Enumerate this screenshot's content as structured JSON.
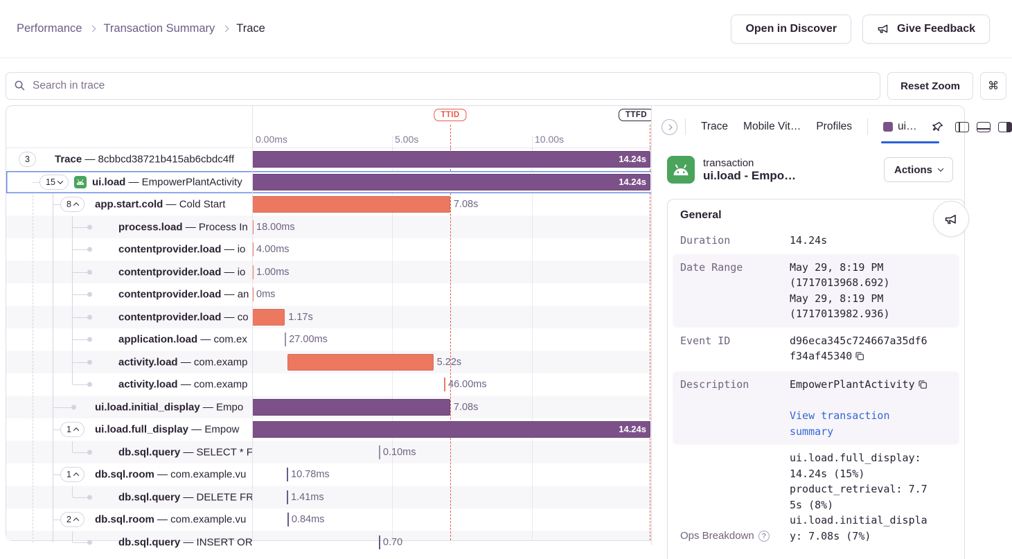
{
  "breadcrumb": {
    "items": [
      {
        "label": "Performance"
      },
      {
        "label": "Transaction Summary"
      },
      {
        "label": "Trace"
      }
    ]
  },
  "header_buttons": {
    "open_in_discover": "Open in Discover",
    "give_feedback": "Give Feedback"
  },
  "toolbar": {
    "search_placeholder": "Search in trace",
    "reset_zoom_label": "Reset Zoom",
    "shortcut_key": "⌘"
  },
  "timeline": {
    "duration_s": 14.24,
    "ticks": [
      {
        "label": "0.00ms",
        "t": 0
      },
      {
        "label": "5.00s",
        "t": 5
      },
      {
        "label": "10.00s",
        "t": 10
      }
    ],
    "markers": [
      {
        "label": "TTID",
        "t": 7.08
      },
      {
        "label": "TTFD",
        "t": 14.24
      }
    ]
  },
  "rows": [
    {
      "depth": 0,
      "marker": "pill",
      "count": "3",
      "chevron": null,
      "op": "Trace",
      "desc": "8cbbcd38721b415ab6cbdc4ff",
      "bar": {
        "kind": "bar",
        "color": "purple",
        "start": 0,
        "duration": 14.24,
        "label": "14.24s",
        "label_inside": true
      }
    },
    {
      "depth": 1,
      "marker": "pill",
      "count": "15",
      "chevron": "down",
      "icon": "android",
      "selected": true,
      "op": "ui.load",
      "desc": "EmpowerPlantActivity",
      "bar": {
        "kind": "bar",
        "color": "purple",
        "start": 0,
        "duration": 14.24,
        "label": "14.24s",
        "label_inside": true
      }
    },
    {
      "depth": 2,
      "marker": "pill",
      "count": "8",
      "chevron": "up",
      "op": "app.start.cold",
      "desc": "Cold Start",
      "bar": {
        "kind": "bar",
        "color": "orange",
        "start": 0,
        "duration": 7.08,
        "label": "7.08s"
      }
    },
    {
      "depth": 3,
      "marker": "dot",
      "op": "process.load",
      "desc": "Process In",
      "bar": {
        "kind": "tick",
        "color": "orange",
        "start": 0,
        "label": "18.00ms"
      }
    },
    {
      "depth": 3,
      "marker": "dot",
      "op": "contentprovider.load",
      "desc": "io",
      "bar": {
        "kind": "tick",
        "color": "orange",
        "start": 0,
        "label": "4.00ms"
      }
    },
    {
      "depth": 3,
      "marker": "dot",
      "op": "contentprovider.load",
      "desc": "io",
      "bar": {
        "kind": "tick",
        "color": "orange",
        "start": 0,
        "label": "1.00ms"
      }
    },
    {
      "depth": 3,
      "marker": "dot",
      "op": "contentprovider.load",
      "desc": "an",
      "bar": {
        "kind": "tick",
        "color": "orange",
        "start": 0,
        "label": "0ms"
      }
    },
    {
      "depth": 3,
      "marker": "dot",
      "op": "contentprovider.load",
      "desc": "co",
      "bar": {
        "kind": "bar",
        "color": "orange",
        "start": 0,
        "duration": 1.17,
        "label": "1.17s"
      }
    },
    {
      "depth": 3,
      "marker": "dot",
      "op": "application.load",
      "desc": "com.ex",
      "bar": {
        "kind": "tick",
        "color": "muted",
        "start": 1.17,
        "label": "27.00ms"
      }
    },
    {
      "depth": 3,
      "marker": "dot",
      "op": "activity.load",
      "desc": "com.examp",
      "bar": {
        "kind": "bar",
        "color": "orange",
        "start": 1.26,
        "duration": 5.22,
        "label": "5.22s"
      }
    },
    {
      "depth": 3,
      "marker": "dot",
      "op": "activity.load",
      "desc": "com.examp",
      "bar": {
        "kind": "tick",
        "color": "orange",
        "start": 6.86,
        "label": "46.00ms"
      }
    },
    {
      "depth": 2,
      "marker": "dot",
      "op": "ui.load.initial_display",
      "desc": "Empo",
      "bar": {
        "kind": "bar",
        "color": "purple",
        "start": 0,
        "duration": 7.08,
        "label": "7.08s"
      }
    },
    {
      "depth": 2,
      "marker": "pill",
      "count": "1",
      "chevron": "up",
      "op": "ui.load.full_display",
      "desc": "Empow",
      "bar": {
        "kind": "bar",
        "color": "purple",
        "start": 0,
        "duration": 14.24,
        "label": "14.24s",
        "label_inside": true
      }
    },
    {
      "depth": 3,
      "marker": "dot",
      "op": "db.sql.query",
      "desc": "SELECT * F",
      "bar": {
        "kind": "tick",
        "color": "muted",
        "start": 4.53,
        "label": "0.10ms"
      }
    },
    {
      "depth": 2,
      "marker": "pill",
      "count": "1",
      "chevron": "up",
      "op": "db.sql.room",
      "desc": "com.example.vu",
      "bar": {
        "kind": "tick",
        "color": "purple",
        "start": 1.24,
        "label": "10.78ms"
      }
    },
    {
      "depth": 3,
      "marker": "dot",
      "op": "db.sql.query",
      "desc": "DELETE FR",
      "bar": {
        "kind": "tick",
        "color": "purple",
        "start": 1.24,
        "label": "1.41ms"
      }
    },
    {
      "depth": 2,
      "marker": "pill",
      "count": "2",
      "chevron": "up",
      "op": "db.sql.room",
      "desc": "com.example.vu",
      "bar": {
        "kind": "tick",
        "color": "purple",
        "start": 1.26,
        "label": "0.84ms"
      }
    },
    {
      "depth": 3,
      "marker": "dot",
      "op": "db.sql.query",
      "desc": "INSERT OR",
      "bar": {
        "kind": "tick",
        "color": "purple",
        "start": 4.53,
        "label": "0.70"
      }
    }
  ],
  "drawer": {
    "tabs": [
      {
        "label": "Trace"
      },
      {
        "label": "Mobile Vit…"
      },
      {
        "label": "Profiles"
      }
    ],
    "active_tab": {
      "label": "ui…",
      "swatch_color": "#7c5189"
    },
    "transaction": {
      "kind": "transaction",
      "title": "ui.load - Empo…",
      "actions": "Actions"
    },
    "general": {
      "title": "General",
      "duration_label": "Duration",
      "duration_value": "14.24s",
      "date_range_label": "Date Range",
      "date_range_lines": [
        "May 29, 8:19 PM",
        "(1717013968.692)",
        "May 29, 8:19 PM",
        "(1717013982.936)"
      ],
      "event_id_label": "Event ID",
      "event_id_value": "d96eca345c724667a35df6f34af45340",
      "description_label": "Description",
      "description_value": "EmpowerPlantActivity",
      "description_link": "View transaction summary",
      "ops_label": "Ops Breakdown",
      "ops_items": [
        "ui.load.full_display: 14.24s (15%)",
        "product_retrieval: 7.75s (8%)",
        "ui.load.initial_display: 7.08s (7%)"
      ]
    }
  },
  "colors": {
    "span_purple": "#7c5189",
    "span_orange": "#ec7860",
    "selected_row_blue": "#6d8ee4",
    "active_tab_blue": "#2c5fd8",
    "link_blue": "#3567d4",
    "ttid_red": "#e8594a",
    "android_green": "#4aa45b"
  }
}
